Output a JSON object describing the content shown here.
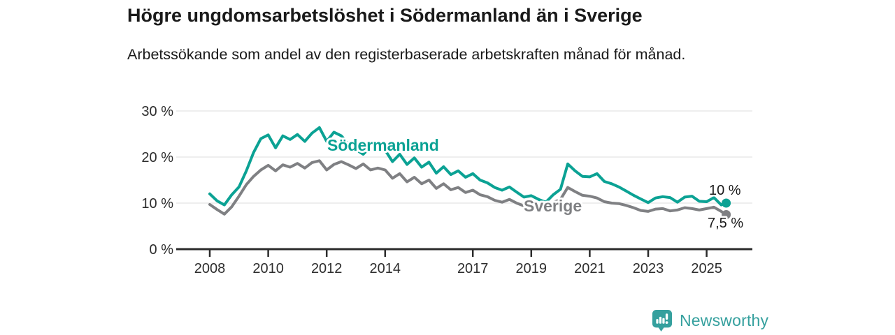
{
  "header": {
    "title": "Högre ungdomsarbetslöshet i Södermanland än i Sverige",
    "subtitle": "Arbetssökande som andel av den registerbaserade arbetskraften månad för månad."
  },
  "chart_data": {
    "type": "line",
    "title": "Högre ungdomsarbetslöshet i Södermanland än i Sverige",
    "subtitle": "Arbetssökande som andel av den registerbaserade arbetskraften månad för månad.",
    "unit": "%",
    "grid": "horizontal",
    "legend_position": "inline-labels",
    "x_range": [
      2008,
      2025.67
    ],
    "ylim": [
      0,
      32
    ],
    "y_ticks": [
      0,
      10,
      20,
      30
    ],
    "y_tick_labels": [
      "0 %",
      "10 %",
      "20 %",
      "30 %"
    ],
    "x_ticks": [
      2008,
      2010,
      2012,
      2014,
      2017,
      2019,
      2021,
      2023,
      2025
    ],
    "x_tick_labels": [
      "2008",
      "2010",
      "2012",
      "2014",
      "2017",
      "2019",
      "2021",
      "2023",
      "2025"
    ],
    "x": [
      2008,
      2008.25,
      2008.5,
      2008.75,
      2009,
      2009.25,
      2009.5,
      2009.75,
      2010,
      2010.25,
      2010.5,
      2010.75,
      2011,
      2011.25,
      2011.5,
      2011.75,
      2012,
      2012.25,
      2012.5,
      2012.75,
      2013,
      2013.25,
      2013.5,
      2013.75,
      2014,
      2014.25,
      2014.5,
      2014.75,
      2015,
      2015.25,
      2015.5,
      2015.75,
      2016,
      2016.25,
      2016.5,
      2016.75,
      2017,
      2017.25,
      2017.5,
      2017.75,
      2018,
      2018.25,
      2018.5,
      2018.75,
      2019,
      2019.25,
      2019.5,
      2019.75,
      2020,
      2020.25,
      2020.5,
      2020.75,
      2021,
      2021.25,
      2021.5,
      2021.75,
      2022,
      2022.25,
      2022.5,
      2022.75,
      2023,
      2023.25,
      2023.5,
      2023.75,
      2024,
      2024.25,
      2024.5,
      2024.75,
      2025,
      2025.25,
      2025.5,
      2025.67
    ],
    "series": [
      {
        "name": "Södermanland",
        "color": "#0ba294",
        "end_label": "10 %",
        "end_value": 10,
        "values": [
          12.0,
          10.5,
          9.6,
          11.8,
          13.5,
          17.0,
          21.0,
          24.0,
          24.8,
          22.0,
          24.6,
          23.8,
          24.9,
          23.4,
          25.2,
          26.4,
          23.4,
          25.4,
          24.6,
          22.8,
          21.6,
          20.6,
          22.2,
          21.8,
          21.5,
          19.0,
          20.6,
          18.4,
          19.8,
          17.8,
          18.9,
          16.5,
          17.9,
          16.2,
          17.0,
          15.6,
          16.4,
          15.0,
          14.4,
          13.4,
          12.8,
          13.5,
          12.4,
          11.3,
          11.6,
          10.8,
          10.2,
          11.8,
          13.0,
          18.5,
          17.0,
          15.8,
          15.7,
          16.4,
          14.7,
          14.2,
          13.5,
          12.6,
          11.7,
          10.9,
          10.1,
          11.1,
          11.4,
          11.2,
          10.2,
          11.3,
          11.5,
          10.4,
          10.3,
          11.2,
          9.6,
          10.0
        ]
      },
      {
        "name": "Sverige",
        "color": "#7f8083",
        "end_label": "7,5 %",
        "end_value": 7.5,
        "values": [
          9.7,
          8.6,
          7.6,
          9.2,
          11.5,
          14.0,
          15.8,
          17.2,
          18.2,
          17.0,
          18.3,
          17.8,
          18.6,
          17.6,
          18.8,
          19.2,
          17.2,
          18.4,
          19.0,
          18.3,
          17.5,
          18.5,
          17.2,
          17.6,
          17.2,
          15.4,
          16.4,
          14.6,
          15.6,
          14.2,
          15.0,
          13.2,
          14.2,
          12.9,
          13.4,
          12.3,
          12.8,
          11.8,
          11.4,
          10.6,
          10.2,
          10.8,
          10.0,
          9.4,
          9.9,
          9.3,
          8.9,
          10.1,
          10.8,
          13.4,
          12.5,
          11.7,
          11.5,
          11.1,
          10.3,
          10.0,
          9.9,
          9.5,
          9.0,
          8.4,
          8.2,
          8.7,
          8.8,
          8.3,
          8.5,
          9.0,
          8.8,
          8.5,
          8.8,
          9.1,
          8.2,
          7.5
        ]
      }
    ]
  },
  "colors": {
    "grid": "#e3e3e3",
    "axis": "#2b2b2b",
    "tick_text": "#2d2d2d",
    "title_text": "#1a1a1a"
  },
  "footer": {
    "brand": "Newsworthy",
    "brand_color": "#35a09e",
    "logo_icon": "bar-chart-speech-bubble-icon"
  }
}
